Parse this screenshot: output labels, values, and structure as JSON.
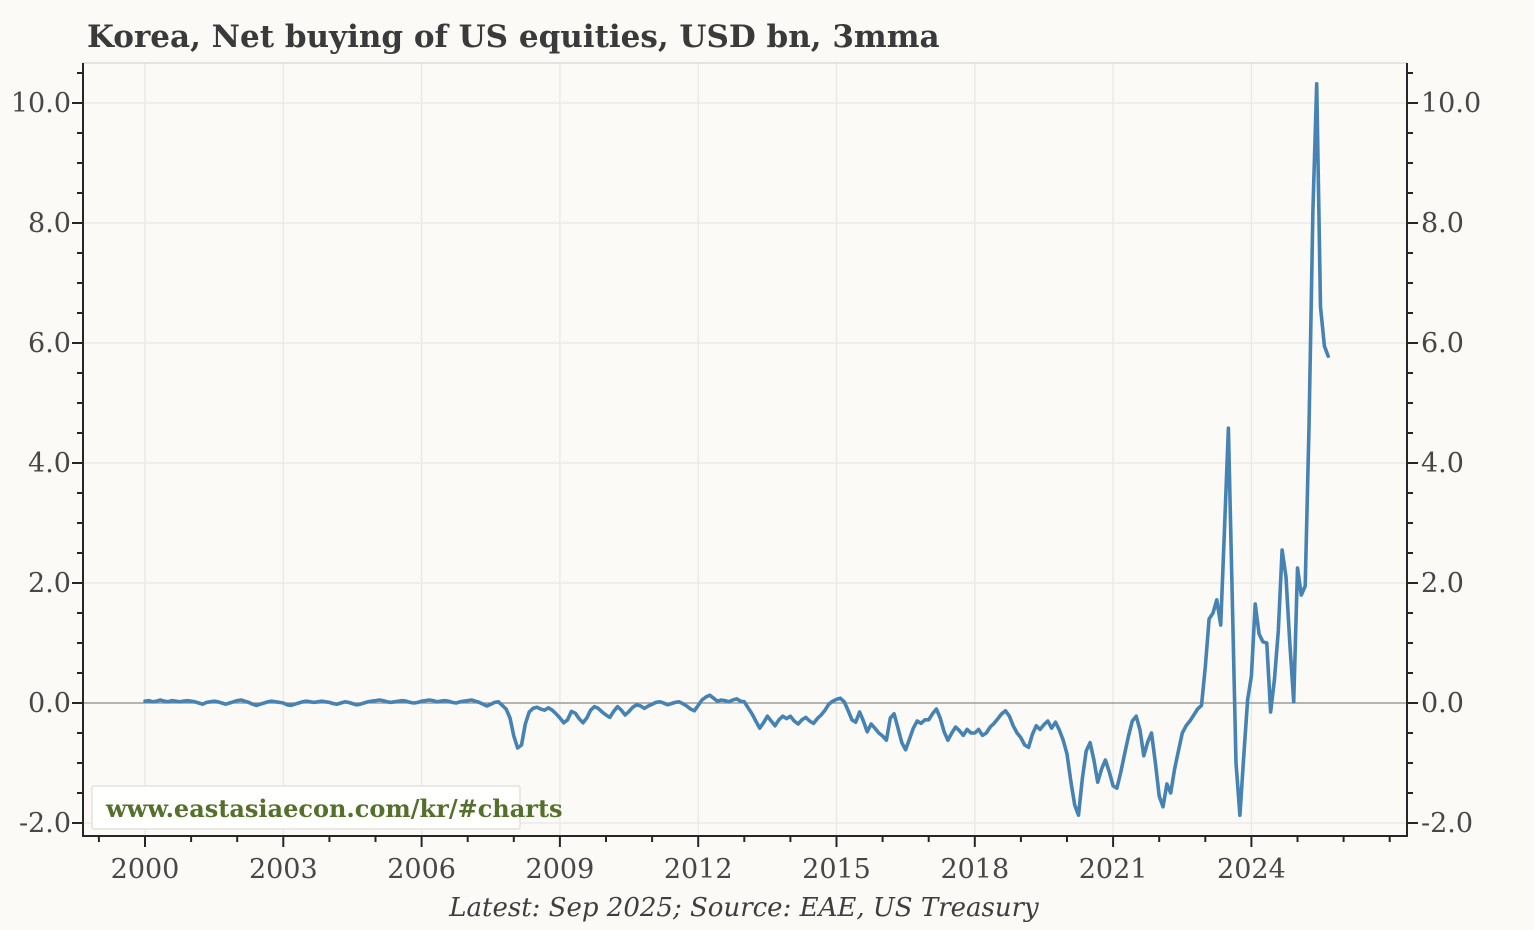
{
  "chart_data": {
    "type": "line",
    "title": "Korea, Net buying of US equities, USD bn, 3mma",
    "caption": "Latest: Sep 2025; Source: EAE, US Treasury",
    "watermark": "www.eastasiaecon.com/kr/#charts",
    "xlabel": "",
    "ylabel": "",
    "legend": "none",
    "grid": "major-both",
    "x_ticks_major": [
      2000,
      2003,
      2006,
      2009,
      2012,
      2015,
      2018,
      2021,
      2024
    ],
    "x_minor_step_years": 1,
    "y_ticks_major": [
      -2.0,
      0.0,
      2.0,
      4.0,
      6.0,
      8.0,
      10.0
    ],
    "y_minor_step": 0.5,
    "xlim": [
      1998.65,
      2027.4
    ],
    "ylim": [
      -2.22,
      10.67
    ],
    "y_axis_sides": "left and right",
    "zero_line": true,
    "colors": {
      "line": "#4683b3",
      "watermark_text": "#54702c",
      "grid": "#e8e8e6",
      "zero_line": "#8a8a8a",
      "spine": "#262626",
      "tick_text": "#474747",
      "title_text": "#3a3a3a"
    },
    "series": [
      {
        "name": "Korea net buying of US equities, 3mma (USD bn)",
        "start": "2000-01",
        "end": "2025-09",
        "frequency": "monthly",
        "values": [
          0.03,
          0.04,
          0.02,
          0.03,
          0.05,
          0.03,
          0.02,
          0.04,
          0.03,
          0.02,
          0.03,
          0.04,
          0.03,
          0.02,
          0.0,
          -0.02,
          0.01,
          0.02,
          0.03,
          0.02,
          0.0,
          -0.02,
          0.0,
          0.02,
          0.04,
          0.05,
          0.03,
          0.01,
          -0.02,
          -0.04,
          -0.02,
          0.0,
          0.02,
          0.03,
          0.02,
          0.01,
          0.0,
          -0.03,
          -0.04,
          -0.02,
          0.0,
          0.02,
          0.03,
          0.02,
          0.01,
          0.02,
          0.03,
          0.02,
          0.01,
          -0.01,
          -0.02,
          0.0,
          0.02,
          0.01,
          -0.01,
          -0.03,
          -0.02,
          0.0,
          0.02,
          0.03,
          0.04,
          0.05,
          0.04,
          0.02,
          0.01,
          0.02,
          0.03,
          0.04,
          0.03,
          0.01,
          0.0,
          0.01,
          0.03,
          0.04,
          0.05,
          0.04,
          0.02,
          0.03,
          0.04,
          0.03,
          0.01,
          0.0,
          0.02,
          0.03,
          0.04,
          0.05,
          0.03,
          0.01,
          -0.02,
          -0.05,
          -0.02,
          0.01,
          0.02,
          -0.04,
          -0.1,
          -0.25,
          -0.55,
          -0.75,
          -0.7,
          -0.35,
          -0.15,
          -0.09,
          -0.07,
          -0.1,
          -0.12,
          -0.08,
          -0.12,
          -0.18,
          -0.25,
          -0.33,
          -0.28,
          -0.14,
          -0.17,
          -0.26,
          -0.33,
          -0.25,
          -0.12,
          -0.06,
          -0.09,
          -0.15,
          -0.2,
          -0.24,
          -0.14,
          -0.06,
          -0.12,
          -0.2,
          -0.14,
          -0.07,
          -0.03,
          -0.05,
          -0.09,
          -0.05,
          -0.02,
          0.01,
          0.02,
          0.0,
          -0.03,
          -0.01,
          0.01,
          0.02,
          -0.01,
          -0.05,
          -0.1,
          -0.13,
          -0.04,
          0.05,
          0.1,
          0.13,
          0.08,
          0.03,
          0.05,
          0.04,
          0.02,
          0.05,
          0.07,
          0.03,
          0.02,
          -0.08,
          -0.18,
          -0.3,
          -0.42,
          -0.33,
          -0.22,
          -0.3,
          -0.38,
          -0.28,
          -0.22,
          -0.26,
          -0.22,
          -0.3,
          -0.35,
          -0.28,
          -0.24,
          -0.3,
          -0.34,
          -0.26,
          -0.2,
          -0.12,
          -0.02,
          0.03,
          0.06,
          0.08,
          0.02,
          -0.12,
          -0.28,
          -0.32,
          -0.15,
          -0.3,
          -0.48,
          -0.35,
          -0.42,
          -0.5,
          -0.55,
          -0.62,
          -0.25,
          -0.18,
          -0.42,
          -0.66,
          -0.78,
          -0.6,
          -0.42,
          -0.3,
          -0.34,
          -0.28,
          -0.28,
          -0.18,
          -0.1,
          -0.25,
          -0.48,
          -0.62,
          -0.5,
          -0.4,
          -0.46,
          -0.54,
          -0.44,
          -0.5,
          -0.5,
          -0.44,
          -0.54,
          -0.5,
          -0.4,
          -0.34,
          -0.26,
          -0.18,
          -0.13,
          -0.22,
          -0.38,
          -0.5,
          -0.58,
          -0.7,
          -0.74,
          -0.52,
          -0.38,
          -0.44,
          -0.36,
          -0.3,
          -0.42,
          -0.32,
          -0.45,
          -0.62,
          -0.85,
          -1.3,
          -1.7,
          -1.87,
          -1.25,
          -0.8,
          -0.66,
          -0.95,
          -1.32,
          -1.1,
          -0.95,
          -1.15,
          -1.38,
          -1.42,
          -1.15,
          -0.85,
          -0.55,
          -0.3,
          -0.22,
          -0.45,
          -0.88,
          -0.65,
          -0.5,
          -1.0,
          -1.55,
          -1.73,
          -1.35,
          -1.5,
          -1.1,
          -0.8,
          -0.5,
          -0.38,
          -0.3,
          -0.2,
          -0.1,
          -0.04,
          0.6,
          1.4,
          1.5,
          1.72,
          1.3,
          2.9,
          4.58,
          1.8,
          -1.0,
          -1.87,
          -0.9,
          0.05,
          0.45,
          1.65,
          1.15,
          1.02,
          1.0,
          -0.15,
          0.4,
          1.2,
          2.55,
          2.1,
          1.0,
          0.02,
          2.25,
          1.8,
          1.95,
          4.6,
          8.2,
          10.32,
          6.6,
          5.95,
          5.78
        ]
      }
    ]
  }
}
